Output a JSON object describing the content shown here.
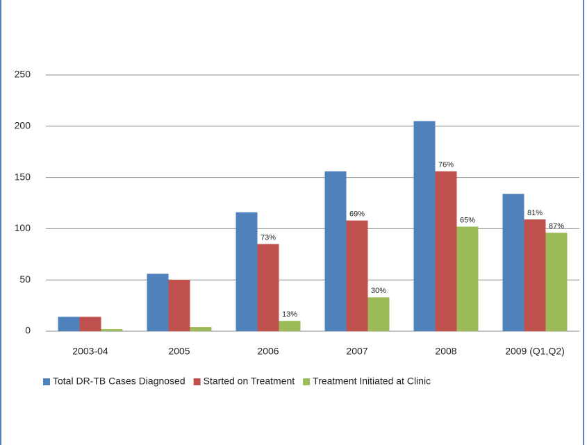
{
  "chart_data": {
    "type": "bar",
    "categories": [
      "2003-04",
      "2005",
      "2006",
      "2007",
      "2008",
      "2009 (Q1,Q2)"
    ],
    "series": [
      {
        "name": "Total DR-TB Cases Diagnosed",
        "color": "#4f81bd",
        "values": [
          14,
          56,
          116,
          156,
          205,
          134
        ]
      },
      {
        "name": "Started on Treatment",
        "color": "#c0504d",
        "values": [
          14,
          50,
          85,
          108,
          156,
          109
        ],
        "annotations": [
          null,
          null,
          "73%",
          "69%",
          "76%",
          "81%"
        ]
      },
      {
        "name": "Treatment Initiated at Clinic",
        "color": "#9bbb59",
        "values": [
          2,
          4,
          10,
          33,
          102,
          96
        ],
        "annotations": [
          null,
          null,
          "13%",
          "30%",
          "65%",
          "87%"
        ]
      }
    ],
    "ylim": [
      0,
      250
    ],
    "yticks": [
      0,
      50,
      100,
      150,
      200,
      250
    ],
    "grid": true,
    "legend": "bottom"
  }
}
